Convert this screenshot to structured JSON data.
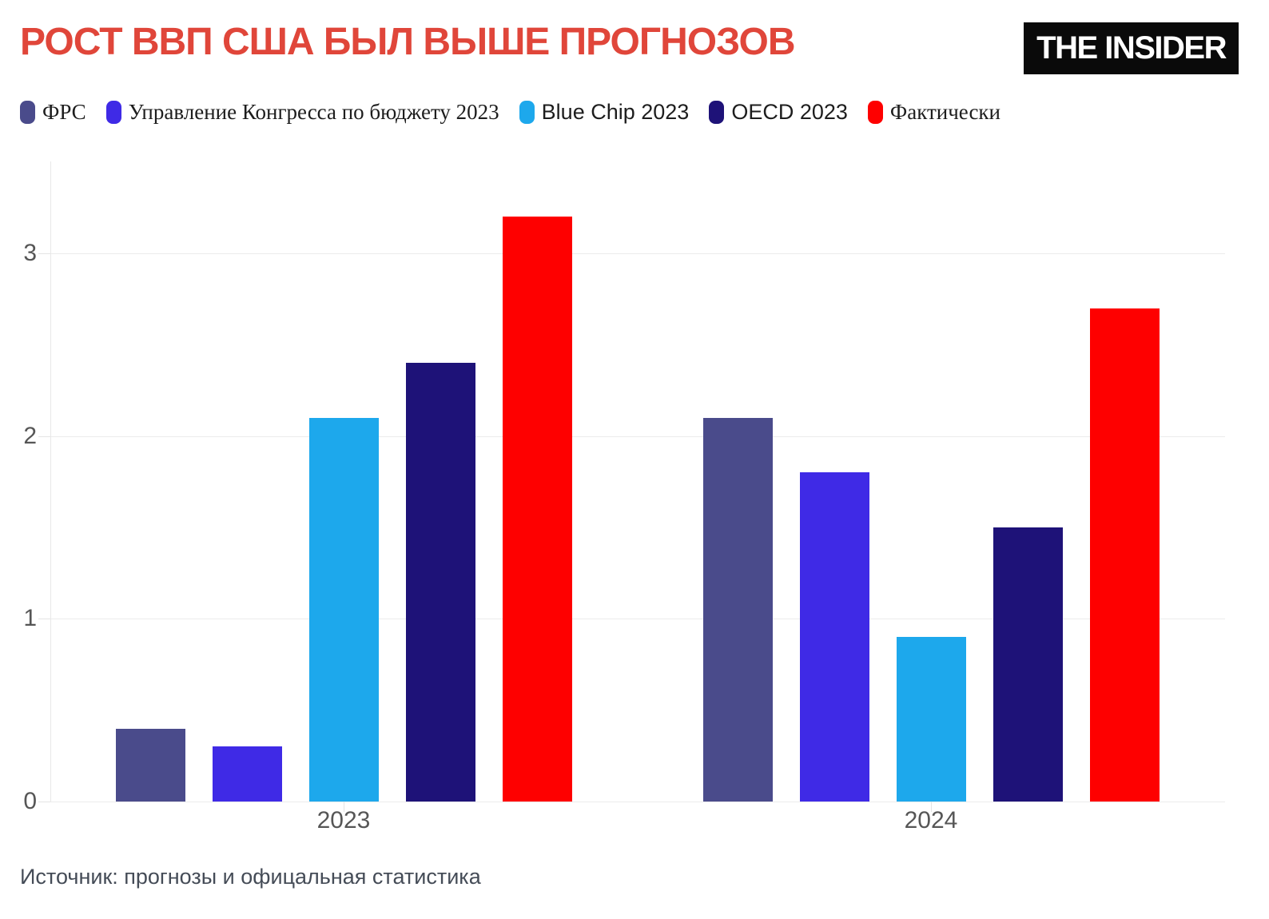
{
  "header": {
    "title": "РОСТ ВВП США БЫЛ ВЫШЕ ПРОГНОЗОВ",
    "logo": "THE INSIDER"
  },
  "footer": {
    "source": "Источник: прогнозы и офицальная статистика"
  },
  "colors": {
    "title": "#e0463a",
    "grid": "#ececec",
    "tick_text": "#565656"
  },
  "chart_data": {
    "type": "bar",
    "categories": [
      "2023",
      "2024"
    ],
    "series": [
      {
        "name": "ФРС",
        "color": "#4a4b8b",
        "values": [
          0.4,
          2.1
        ]
      },
      {
        "name": "Управление Конгресса по бюджету 2023",
        "color": "#3f2ae6",
        "values": [
          0.3,
          1.8
        ]
      },
      {
        "name": "Blue Chip 2023",
        "color": "#1da8ec",
        "values": [
          2.1,
          0.9
        ]
      },
      {
        "name": "OECD 2023",
        "color": "#1e1278",
        "values": [
          2.4,
          1.5
        ]
      },
      {
        "name": "Фактически",
        "color": "#fe0000",
        "values": [
          3.2,
          2.7
        ]
      }
    ],
    "yticks": [
      0,
      1,
      2,
      3
    ],
    "ylim": [
      0,
      3.5
    ],
    "grid": true,
    "legend_position": "top"
  }
}
